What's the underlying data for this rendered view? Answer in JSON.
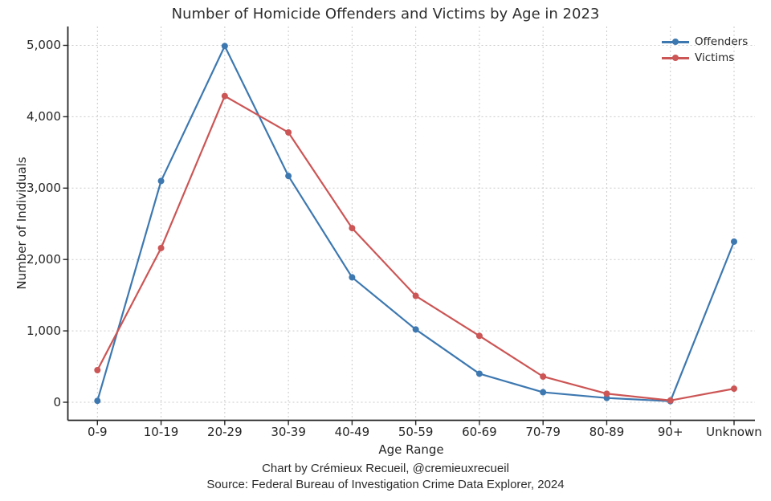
{
  "footer": {
    "credit": "Chart by Crémieux Recueil, @cremieuxrecueil",
    "source": "Source: Federal Bureau of Investigation Crime Data Explorer, 2024"
  },
  "chart_data": {
    "type": "line",
    "title": "Number of Homicide Offenders and Victims by Age in 2023",
    "xlabel": "Age Range",
    "ylabel": "Number of Individuals",
    "categories": [
      "0-9",
      "10-19",
      "20-29",
      "30-39",
      "40-49",
      "50-59",
      "60-69",
      "70-79",
      "80-89",
      "90+",
      "Unknown"
    ],
    "series": [
      {
        "name": "Offenders",
        "color": "#3d78b0",
        "values": [
          20,
          3100,
          4990,
          3170,
          1750,
          1020,
          400,
          140,
          60,
          15,
          2250
        ]
      },
      {
        "name": "Victims",
        "color": "#cc5555",
        "values": [
          450,
          2160,
          4290,
          3780,
          2440,
          1490,
          930,
          360,
          120,
          25,
          190
        ]
      }
    ],
    "ylim": [
      0,
      5000
    ],
    "yticks": [
      0,
      1000,
      2000,
      3000,
      4000,
      5000
    ],
    "ytick_labels": [
      "0",
      "1,000",
      "2,000",
      "3,000",
      "4,000",
      "5,000"
    ],
    "grid": true,
    "grid_style": "dotted",
    "legend_position": "upper-right",
    "marker": "circle"
  }
}
